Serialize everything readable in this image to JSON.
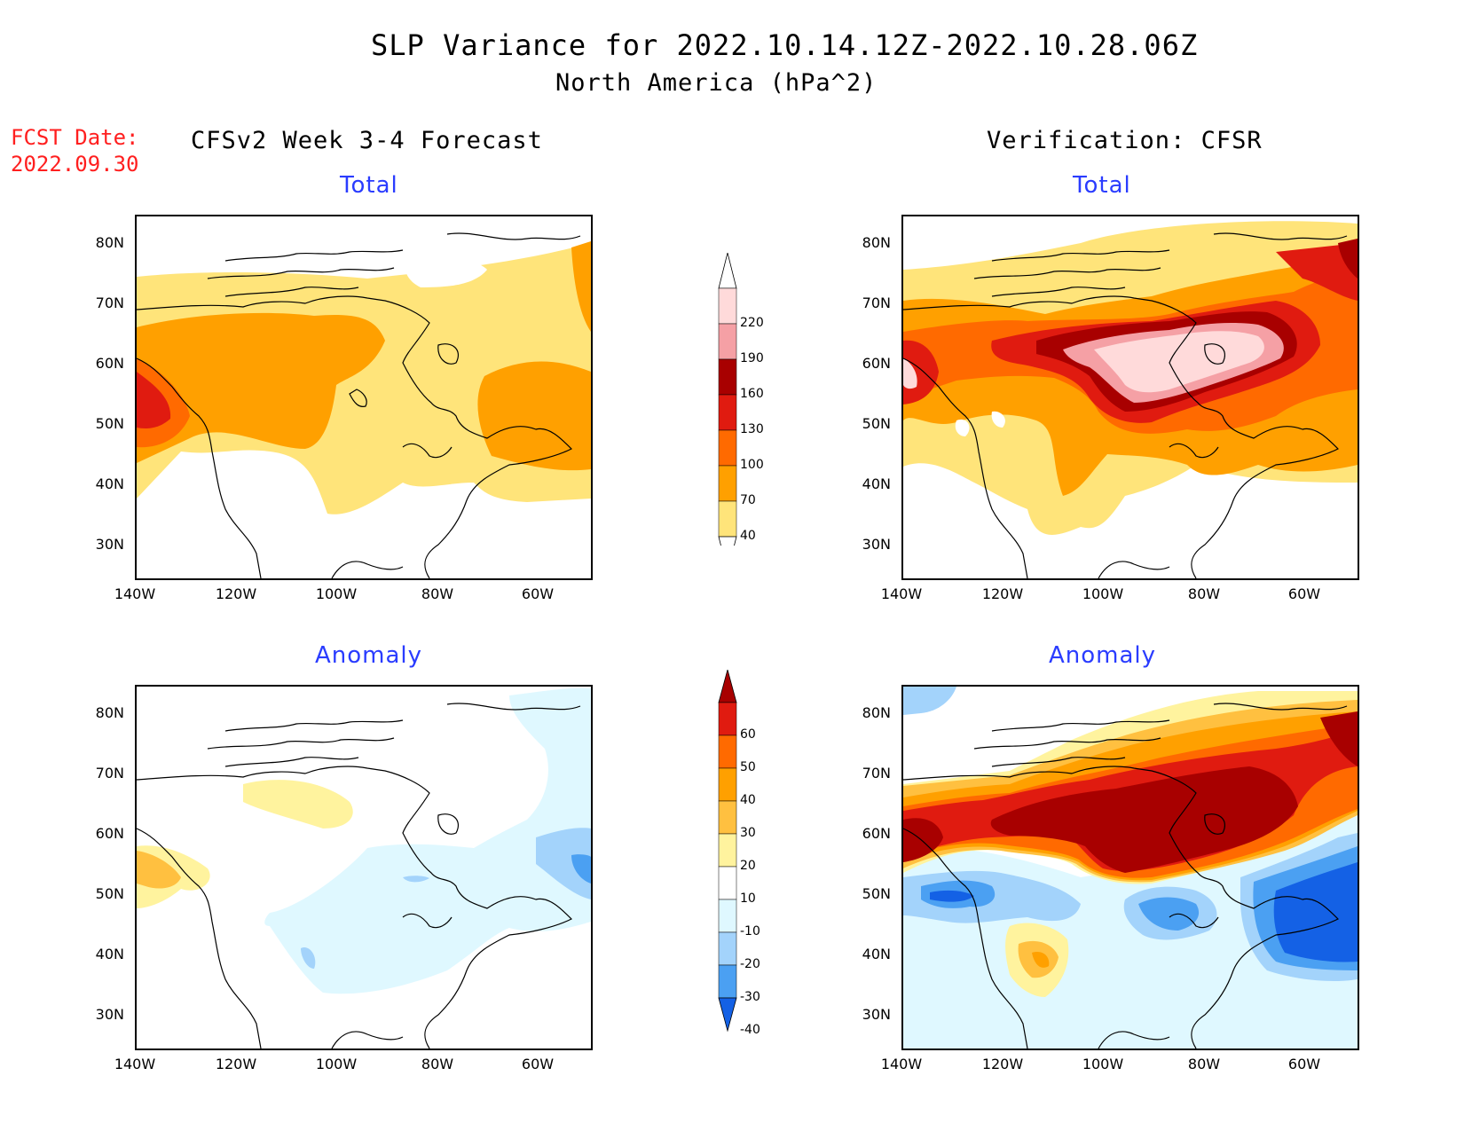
{
  "header": {
    "title": "SLP Variance for 2022.10.14.12Z-2022.10.28.06Z",
    "subtitle": "North America (hPa^2)",
    "fcst_label": "FCST Date:",
    "fcst_date": "2022.09.30",
    "left_column": "CFSv2 Week 3-4 Forecast",
    "right_column": "Verification: CFSR"
  },
  "panels": {
    "tl": "Total",
    "tr": "Total",
    "bl": "Anomaly",
    "br": "Anomaly"
  },
  "axes": {
    "lat_labels": [
      "80N",
      "70N",
      "60N",
      "50N",
      "40N",
      "30N"
    ],
    "lon_labels": [
      "140W",
      "120W",
      "100W",
      "80W",
      "60W"
    ],
    "lon_range": [
      -140,
      -50
    ],
    "lat_range": [
      25,
      85
    ]
  },
  "colorbars": {
    "total": {
      "levels": [
        "220",
        "190",
        "160",
        "130",
        "100",
        "70",
        "40"
      ],
      "colors": [
        "#ffdada",
        "#f5a0a5",
        "#a80000",
        "#e01b10",
        "#ff6a00",
        "#ffa000",
        "#ffe47a"
      ]
    },
    "anomaly": {
      "levels": [
        "60",
        "50",
        "40",
        "30",
        "20",
        "10",
        "-10",
        "-20",
        "-30",
        "-40"
      ],
      "colors": [
        "#a80000",
        "#e01b10",
        "#ff6a00",
        "#ffa000",
        "#ffc040",
        "#fff39e",
        "#ffffff",
        "#dff8ff",
        "#a3d3fb",
        "#4ba0f2",
        "#1461e5"
      ]
    }
  }
}
